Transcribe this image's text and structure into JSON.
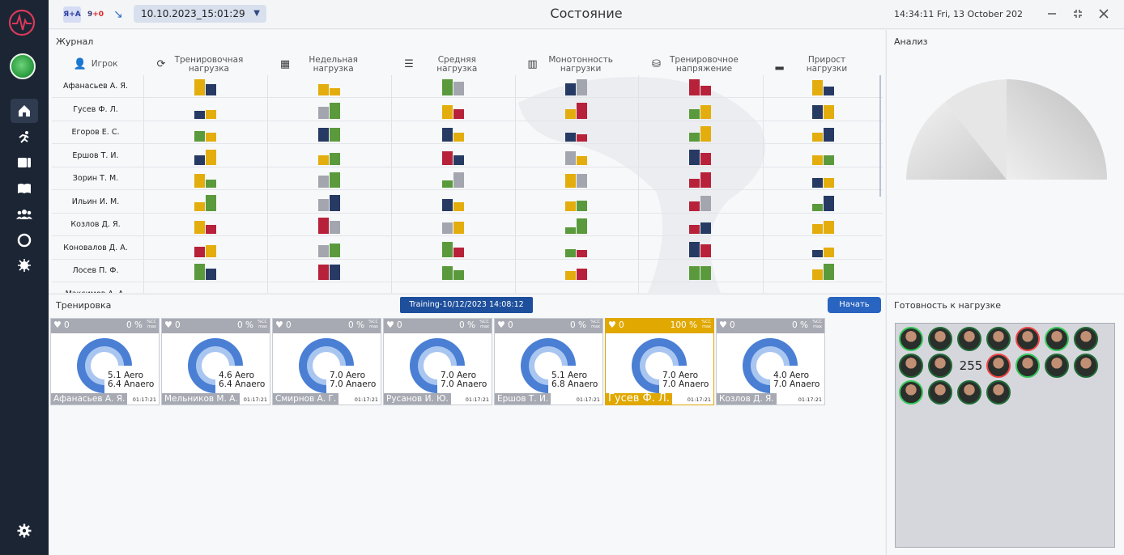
{
  "topbar": {
    "chip_ya": "Я+А",
    "chip_count_a": "9",
    "chip_count_b": "+0",
    "date_select": "10.10.2023_15:01:29",
    "title": "Состояние",
    "clock": "14:34:11  Fri, 13 October 202"
  },
  "sidebar": {
    "items": [
      "home-icon",
      "running-icon",
      "dashboard-icon",
      "book-icon",
      "team-icon",
      "circle-icon",
      "virus-icon",
      "gear-icon"
    ]
  },
  "journal": {
    "title": "Журнал",
    "columns": [
      {
        "label": "Игрок",
        "icon": "user-icon"
      },
      {
        "label": "Тренировочная нагрузка",
        "icon": "refresh-icon"
      },
      {
        "label": "Недельная нагрузка",
        "icon": "calendar-icon"
      },
      {
        "label": "Средняя нагрузка",
        "icon": "stack-icon"
      },
      {
        "label": "Монотонность нагрузки",
        "icon": "bars-icon"
      },
      {
        "label": "Тренировочное напряжение",
        "icon": "weights-icon"
      },
      {
        "label": "Прирост нагрузки",
        "icon": "chart-icon"
      }
    ],
    "players": [
      "Афанасьев А. Я.",
      "Гусев Ф. Л.",
      "Егоров Е. С.",
      "Ершов Т. И.",
      "Зорин Т. М.",
      "Ильин И. М.",
      "Козлов Д. Я.",
      "Коновалов Д. А.",
      "Лосев П. Ф.",
      "Максимов А. А."
    ],
    "colors": {
      "yellow": "#e3ad0d",
      "navy": "#263a63",
      "green": "#5a9a3c",
      "red": "#b8213a",
      "gray": "#a3a6ae"
    },
    "cells": [
      [
        [
          "yellow",
          "navy"
        ],
        [
          "yellow",
          "yellow"
        ],
        [
          "green",
          "gray"
        ],
        [
          "navy",
          "gray"
        ],
        [
          "red",
          "red"
        ],
        [
          "yellow",
          "navy"
        ]
      ],
      [
        [
          "navy",
          "yellow"
        ],
        [
          "gray",
          "green"
        ],
        [
          "yellow",
          "red"
        ],
        [
          "yellow",
          "red"
        ],
        [
          "green",
          "yellow"
        ],
        [
          "navy",
          "yellow"
        ]
      ],
      [
        [
          "green",
          "yellow"
        ],
        [
          "navy",
          "green"
        ],
        [
          "navy",
          "yellow"
        ],
        [
          "navy",
          "red"
        ],
        [
          "green",
          "yellow"
        ],
        [
          "yellow",
          "navy"
        ]
      ],
      [
        [
          "navy",
          "yellow"
        ],
        [
          "yellow",
          "green"
        ],
        [
          "red",
          "navy"
        ],
        [
          "gray",
          "yellow"
        ],
        [
          "navy",
          "red"
        ],
        [
          "yellow",
          "green"
        ]
      ],
      [
        [
          "yellow",
          "green"
        ],
        [
          "gray",
          "green"
        ],
        [
          "green",
          "gray"
        ],
        [
          "yellow",
          "gray"
        ],
        [
          "red",
          "red"
        ],
        [
          "navy",
          "yellow"
        ]
      ],
      [
        [
          "yellow",
          "green"
        ],
        [
          "gray",
          "navy"
        ],
        [
          "navy",
          "yellow"
        ],
        [
          "yellow",
          "green"
        ],
        [
          "red",
          "gray"
        ],
        [
          "green",
          "navy"
        ]
      ],
      [
        [
          "yellow",
          "red"
        ],
        [
          "red",
          "gray"
        ],
        [
          "gray",
          "yellow"
        ],
        [
          "green",
          "green"
        ],
        [
          "red",
          "navy"
        ],
        [
          "yellow",
          "yellow"
        ]
      ],
      [
        [
          "red",
          "yellow"
        ],
        [
          "gray",
          "green"
        ],
        [
          "green",
          "red"
        ],
        [
          "green",
          "red"
        ],
        [
          "navy",
          "red"
        ],
        [
          "navy",
          "yellow"
        ]
      ],
      [
        [
          "green",
          "navy"
        ],
        [
          "red",
          "navy"
        ],
        [
          "green",
          "green"
        ],
        [
          "yellow",
          "red"
        ],
        [
          "green",
          "green"
        ],
        [
          "yellow",
          "green"
        ]
      ],
      [
        [
          "red",
          "yellow"
        ],
        [
          "green",
          "red"
        ],
        [
          "green",
          "navy"
        ],
        [
          "yellow",
          "red"
        ],
        [
          "navy",
          "green"
        ],
        [
          "gray",
          "green"
        ]
      ]
    ],
    "cell_levels": [
      [
        [
          1.0,
          0.7
        ],
        [
          0.7,
          0.45
        ],
        [
          1.0,
          0.85
        ],
        [
          0.75,
          1.0
        ],
        [
          1.0,
          0.6
        ],
        [
          0.95,
          0.55
        ]
      ],
      [
        [
          0.5,
          0.55
        ],
        [
          0.75,
          1.0
        ],
        [
          0.85,
          0.6
        ],
        [
          0.6,
          1.0
        ],
        [
          0.6,
          0.85
        ],
        [
          0.85,
          0.85
        ]
      ],
      [
        [
          0.65,
          0.55
        ],
        [
          0.85,
          0.85
        ],
        [
          0.85,
          0.55
        ],
        [
          0.55,
          0.45
        ],
        [
          0.55,
          0.95
        ],
        [
          0.55,
          0.85
        ]
      ],
      [
        [
          0.6,
          0.95
        ],
        [
          0.6,
          0.75
        ],
        [
          0.85,
          0.6
        ],
        [
          0.85,
          0.55
        ],
        [
          0.95,
          0.75
        ],
        [
          0.6,
          0.6
        ]
      ],
      [
        [
          0.85,
          0.5
        ],
        [
          0.75,
          0.95
        ],
        [
          0.45,
          0.95
        ],
        [
          0.85,
          0.85
        ],
        [
          0.55,
          0.95
        ],
        [
          0.6,
          0.6
        ]
      ],
      [
        [
          0.55,
          1.0
        ],
        [
          0.75,
          1.0
        ],
        [
          0.75,
          0.55
        ],
        [
          0.6,
          0.65
        ],
        [
          0.6,
          0.95
        ],
        [
          0.45,
          0.95
        ]
      ],
      [
        [
          0.8,
          0.55
        ],
        [
          1.0,
          0.8
        ],
        [
          0.7,
          0.75
        ],
        [
          0.4,
          0.95
        ],
        [
          0.55,
          0.7
        ],
        [
          0.6,
          0.8
        ]
      ],
      [
        [
          0.65,
          0.75
        ],
        [
          0.75,
          0.85
        ],
        [
          0.95,
          0.6
        ],
        [
          0.5,
          0.45
        ],
        [
          0.95,
          0.8
        ],
        [
          0.45,
          0.6
        ]
      ],
      [
        [
          1.0,
          0.7
        ],
        [
          0.95,
          0.95
        ],
        [
          0.85,
          0.6
        ],
        [
          0.55,
          0.7
        ],
        [
          0.85,
          0.85
        ],
        [
          0.65,
          1.0
        ]
      ],
      [
        [
          0.55,
          0.35
        ],
        [
          0.25,
          0.6
        ],
        [
          0.25,
          0.65
        ],
        [
          0.45,
          0.4
        ],
        [
          0.55,
          0.35
        ],
        [
          0.55,
          0.6
        ]
      ]
    ]
  },
  "analysis": {
    "title": "Анализ"
  },
  "training": {
    "title": "Тренировка",
    "session_label": "Training-10/12/2023 14:08:12",
    "start_button": "Начать",
    "hr_units": [
      "%CC",
      "max"
    ],
    "cards": [
      {
        "hr": "0",
        "pct": "0 %",
        "pct_value": 0,
        "aero": "5.1 Aero",
        "anaero": "6.4 Anaero",
        "name": "Афанасьев А. Я.",
        "time": "01:17:21",
        "highlight": false
      },
      {
        "hr": "0",
        "pct": "0 %",
        "pct_value": 0,
        "aero": "4.6 Aero",
        "anaero": "6.4 Anaero",
        "name": "Мельников М. А.",
        "time": "01:17:21",
        "highlight": false
      },
      {
        "hr": "0",
        "pct": "0 %",
        "pct_value": 0,
        "aero": "7.0 Aero",
        "anaero": "7.0 Anaero",
        "name": "Смирнов А. Г.",
        "time": "01:17:21",
        "highlight": false
      },
      {
        "hr": "0",
        "pct": "0 %",
        "pct_value": 0,
        "aero": "7.0 Aero",
        "anaero": "7.0 Anaero",
        "name": "Русанов И. Ю.",
        "time": "01:17:21",
        "highlight": false
      },
      {
        "hr": "0",
        "pct": "0 %",
        "pct_value": 0,
        "aero": "5.1 Aero",
        "anaero": "6.8 Anaero",
        "name": "Ершов Т. И.",
        "time": "01:17:21",
        "highlight": false
      },
      {
        "hr": "0",
        "pct": "100 %",
        "pct_value": 100,
        "aero": "7.0 Aero",
        "anaero": "7.0 Anaero",
        "name": "Гусев Ф. Л.",
        "time": "01:17:21",
        "highlight": true
      },
      {
        "hr": "0",
        "pct": "0 %",
        "pct_value": 0,
        "aero": "4.0 Aero",
        "anaero": "7.0 Anaero",
        "name": "Козлов Д. Я.",
        "time": "01:17:21",
        "highlight": false
      }
    ]
  },
  "readiness": {
    "title": "Готовность к нагрузке",
    "counter": "255",
    "avatars": [
      "green",
      "plain",
      "plain",
      "plain",
      "red",
      "green",
      "plain",
      "plain",
      "plain",
      "red",
      "green",
      "plain",
      "plain",
      "green",
      "plain",
      "plain",
      "plain"
    ]
  }
}
